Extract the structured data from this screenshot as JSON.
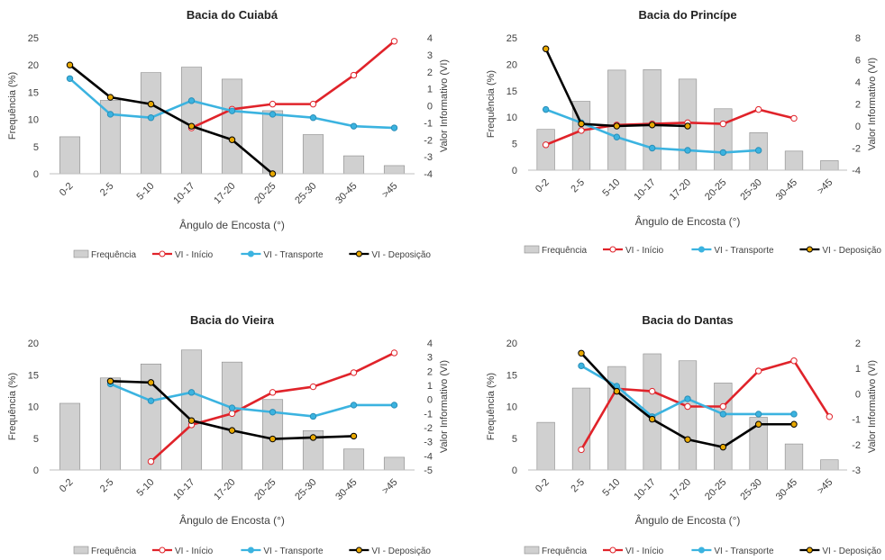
{
  "legend_labels": [
    "Frequência",
    "VI - Início",
    "VI - Transporte",
    "VI - Deposição"
  ],
  "colors": {
    "bar_fill": "#d0d0d0",
    "bar_stroke": "#8a8a8a",
    "inicio": "#e0232a",
    "transporte": "#3bb3e0",
    "deposicao": "#000000",
    "deposicao_marker": "#e8a800",
    "axis_text": "#404040"
  },
  "chart_data": [
    {
      "type": "bar",
      "title": "Bacia do Cuiabá",
      "xlabel": "Ângulo de Encosta (°)",
      "ylabel": "Frequência (%)",
      "y2label": "Valor Informativo (VI)",
      "categories": [
        "0-2",
        "2-5",
        "5-10",
        "10-17",
        "17-20",
        "20-25",
        "25-30",
        "30-45",
        ">45"
      ],
      "ylim": [
        0,
        25
      ],
      "yticks": [
        0,
        5,
        10,
        15,
        20,
        25
      ],
      "y2lim": [
        -4,
        4
      ],
      "y2ticks": [
        -4,
        -3,
        -2,
        -1,
        0,
        1,
        2,
        3,
        4
      ],
      "frequency": [
        6.8,
        13.5,
        18.6,
        19.6,
        17.4,
        11.6,
        7.2,
        3.3,
        1.5
      ],
      "series": [
        {
          "name": "VI - Início",
          "values": [
            null,
            null,
            null,
            -1.3,
            -0.2,
            0.1,
            0.1,
            1.8,
            3.8
          ]
        },
        {
          "name": "VI - Transporte",
          "values": [
            1.6,
            -0.5,
            -0.7,
            0.3,
            -0.3,
            -0.5,
            -0.7,
            -1.2,
            -1.3
          ]
        },
        {
          "name": "VI - Deposição",
          "values": [
            2.4,
            0.5,
            0.1,
            -1.2,
            -2.0,
            -4.0,
            null,
            null,
            null
          ]
        }
      ]
    },
    {
      "type": "bar",
      "title": "Bacia do Princípe",
      "xlabel": "Ângulo de Encosta (°)",
      "ylabel": "Frequência (%)",
      "y2label": "Valor Informativo (VI)",
      "categories": [
        "0-2",
        "2-5",
        "5-10",
        "10-17",
        "17-20",
        "20-25",
        "25-30",
        "30-45",
        ">45"
      ],
      "ylim": [
        0,
        25
      ],
      "yticks": [
        0,
        5,
        10,
        15,
        20,
        25
      ],
      "y2lim": [
        -4,
        8
      ],
      "y2ticks": [
        -4,
        -2,
        0,
        2,
        4,
        6,
        8
      ],
      "frequency": [
        7.7,
        13.0,
        18.9,
        19.0,
        17.2,
        11.6,
        7.1,
        3.6,
        1.8
      ],
      "series": [
        {
          "name": "VI - Início",
          "values": [
            -1.7,
            -0.4,
            0.1,
            0.2,
            0.3,
            0.2,
            1.5,
            0.7,
            null
          ]
        },
        {
          "name": "VI - Transporte",
          "values": [
            1.5,
            0.3,
            -1.0,
            -2.0,
            -2.2,
            -2.4,
            -2.2,
            null,
            null
          ]
        },
        {
          "name": "VI - Deposição",
          "values": [
            7.0,
            0.2,
            0.0,
            0.1,
            0.0,
            null,
            null,
            null,
            null
          ]
        }
      ]
    },
    {
      "type": "bar",
      "title": "Bacia do Vieira",
      "xlabel": "Ângulo de Encosta (°)",
      "ylabel": "Frequência (%)",
      "y2label": "Valor Informativo (VI)",
      "categories": [
        "0-2",
        "2-5",
        "5-10",
        "10-17",
        "17-20",
        "20-25",
        "25-30",
        "30-45",
        ">45"
      ],
      "ylim": [
        0,
        20
      ],
      "yticks": [
        0,
        5,
        10,
        15,
        20
      ],
      "y2lim": [
        -5,
        4
      ],
      "y2ticks": [
        -5,
        -4,
        -3,
        -2,
        -1,
        0,
        1,
        2,
        3,
        4
      ],
      "frequency": [
        10.5,
        14.5,
        16.7,
        18.9,
        17.0,
        11.1,
        6.2,
        3.3,
        2.0
      ],
      "series": [
        {
          "name": "VI - Início",
          "values": [
            null,
            null,
            -4.4,
            -1.8,
            -1.0,
            0.5,
            0.9,
            1.9,
            3.3
          ]
        },
        {
          "name": "VI - Transporte",
          "values": [
            null,
            1.1,
            -0.1,
            0.5,
            -0.6,
            -0.9,
            -1.2,
            -0.4,
            -0.4
          ]
        },
        {
          "name": "VI - Deposição",
          "values": [
            null,
            1.3,
            1.2,
            -1.5,
            -2.2,
            -2.8,
            -2.7,
            -2.6,
            null
          ]
        }
      ]
    },
    {
      "type": "bar",
      "title": "Bacia do Dantas",
      "xlabel": "Ângulo de Encosta (°)",
      "ylabel": "Frequência (%)",
      "y2label": "Valor Informativo (VI)",
      "categories": [
        "0-2",
        "2-5",
        "5-10",
        "10-17",
        "17-20",
        "20-25",
        "25-30",
        "30-45",
        ">45"
      ],
      "ylim": [
        0,
        20
      ],
      "yticks": [
        0,
        5,
        10,
        15,
        20
      ],
      "y2lim": [
        -3,
        2
      ],
      "y2ticks": [
        -3,
        -2,
        -1,
        0,
        1,
        2
      ],
      "frequency": [
        7.5,
        12.9,
        16.3,
        18.3,
        17.2,
        13.7,
        8.3,
        4.1,
        1.6
      ],
      "series": [
        {
          "name": "VI - Início",
          "values": [
            null,
            -2.2,
            0.2,
            0.1,
            -0.5,
            -0.5,
            0.9,
            1.3,
            -0.9
          ]
        },
        {
          "name": "VI - Transporte",
          "values": [
            null,
            1.1,
            0.3,
            -0.9,
            -0.2,
            -0.8,
            -0.8,
            -0.8,
            null
          ]
        },
        {
          "name": "VI - Deposição",
          "values": [
            null,
            1.6,
            0.1,
            -1.0,
            -1.8,
            -2.1,
            -1.2,
            -1.2,
            null
          ]
        }
      ]
    }
  ]
}
